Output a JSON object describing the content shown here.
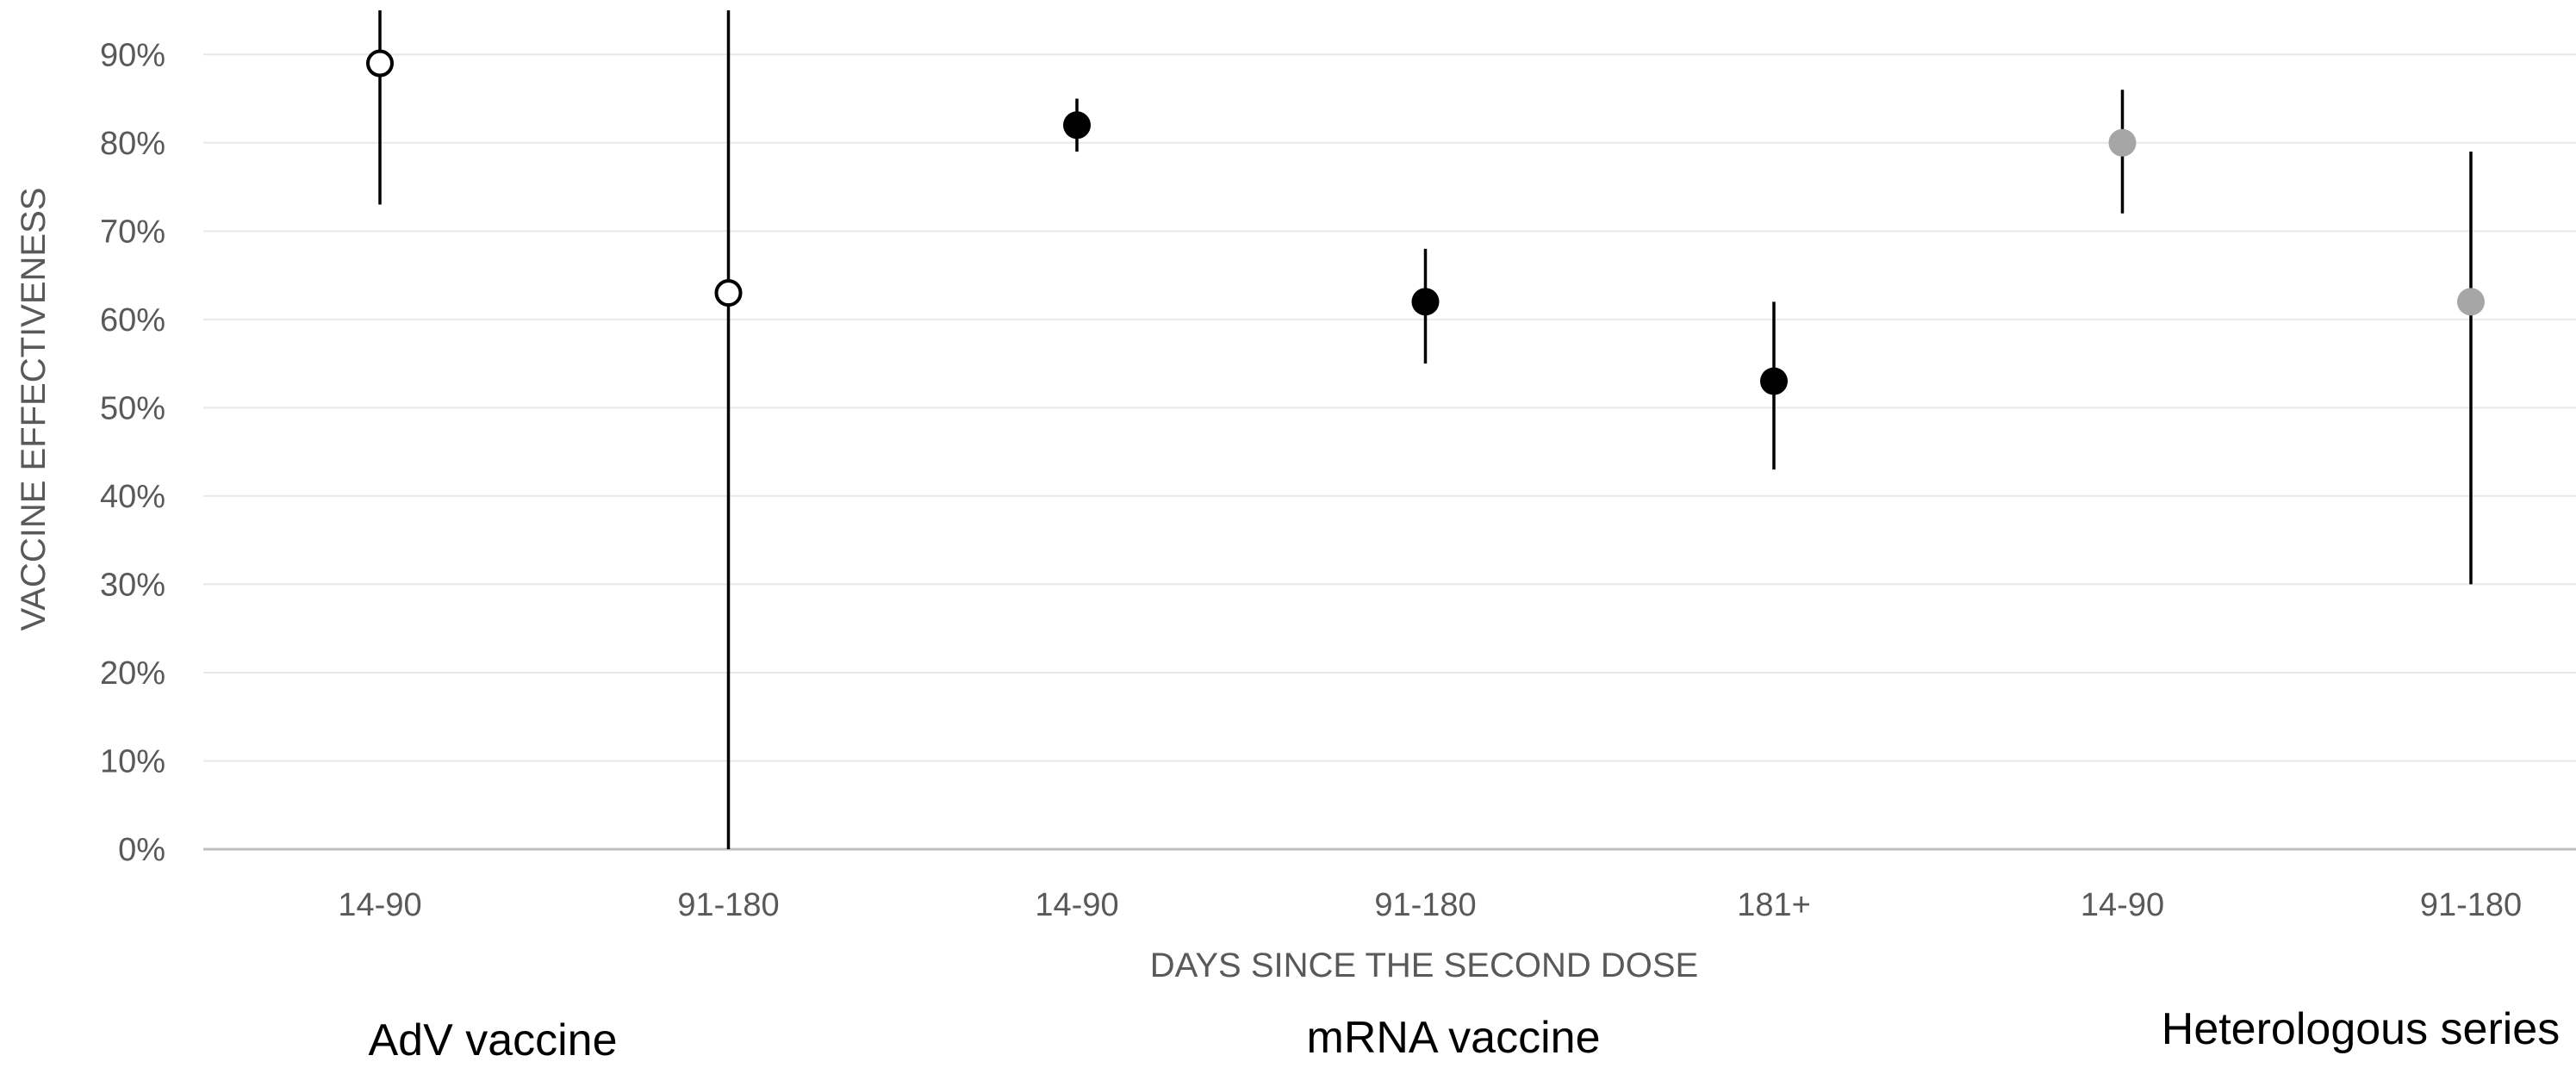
{
  "chart_data": {
    "type": "scatter",
    "title": "",
    "xlabel": "DAYS SINCE THE SECOND DOSE",
    "ylabel": "VACCINE EFFECTIVENESS",
    "ylim": [
      0,
      95
    ],
    "yticks": [
      0,
      10,
      20,
      30,
      40,
      50,
      60,
      70,
      80,
      90
    ],
    "ytick_labels": [
      "0%",
      "10%",
      "20%",
      "30%",
      "40%",
      "50%",
      "60%",
      "70%",
      "80%",
      "90%"
    ],
    "grid": true,
    "categories": [
      "14-90",
      "91-180",
      "14-90",
      "91-180",
      "181+",
      "14-90",
      "91-180"
    ],
    "groups": [
      {
        "label": "AdV vaccine",
        "span": [
          0,
          1
        ]
      },
      {
        "label": "mRNA vaccine",
        "span": [
          2,
          4
        ]
      },
      {
        "label": "Heterologous series",
        "span": [
          5,
          6
        ]
      }
    ],
    "series": [
      {
        "marker": "open-circle",
        "color": "#000000",
        "points": [
          {
            "category_index": 0,
            "value": 89,
            "lower": 73,
            "upper": 95
          },
          {
            "category_index": 1,
            "value": 63,
            "lower": 0,
            "upper": 95
          }
        ]
      },
      {
        "marker": "filled-circle",
        "color": "#000000",
        "points": [
          {
            "category_index": 2,
            "value": 82,
            "lower": 79,
            "upper": 85
          },
          {
            "category_index": 3,
            "value": 62,
            "lower": 55,
            "upper": 68
          },
          {
            "category_index": 4,
            "value": 53,
            "lower": 43,
            "upper": 62
          }
        ]
      },
      {
        "marker": "filled-circle",
        "color": "#a6a6a6",
        "points": [
          {
            "category_index": 5,
            "value": 80,
            "lower": 72,
            "upper": 86
          },
          {
            "category_index": 6,
            "value": 62,
            "lower": 30,
            "upper": 79
          }
        ]
      }
    ]
  }
}
